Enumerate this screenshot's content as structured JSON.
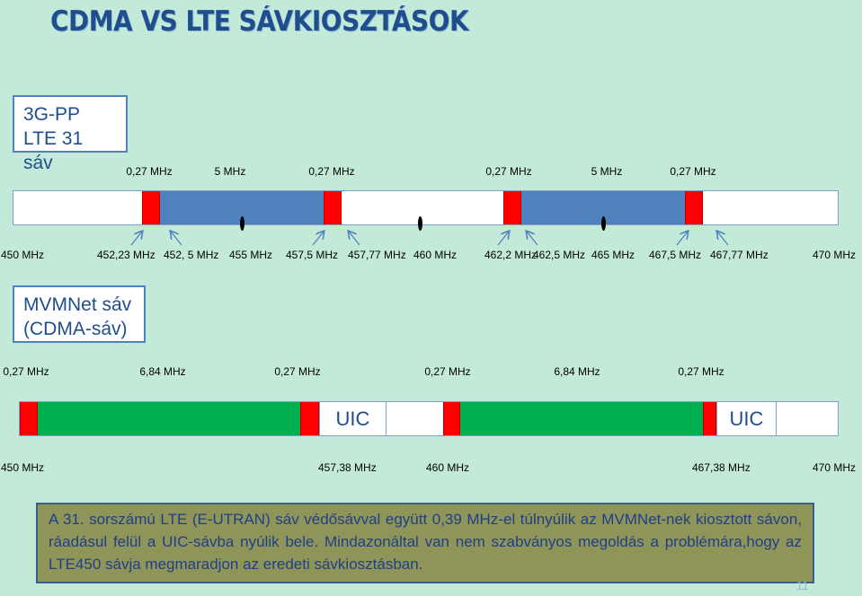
{
  "title": "CDMA VS LTE SÁVKIOSZTÁSOK",
  "lte_box": {
    "line1": "3G-PP",
    "line2": "LTE 31 sáv"
  },
  "lte_widths": [
    "0,27 MHz",
    "5 MHz",
    "0,27 MHz",
    "0,27 MHz",
    "5 MHz",
    "0,27 MHz"
  ],
  "lte_freqs": [
    "450 MHz",
    "452,23 MHz",
    "452, 5 MHz",
    "455 MHz",
    "457,5 MHz",
    "457,77 MHz",
    "460 MHz",
    "462,2 MHz",
    "462,5 MHz",
    "465 MHz",
    "467,5 MHz",
    "467,77 MHz",
    "470 MHz"
  ],
  "cdma_box": {
    "line1": "MVMNet sáv",
    "line2": "(CDMA-sáv)"
  },
  "cdma_widths": [
    "0,27 MHz",
    "6,84 MHz",
    "0,27 MHz",
    "0,27 MHz",
    "6,84 MHz",
    "0,27 MHz"
  ],
  "uic_labels": [
    "UIC",
    "UIC"
  ],
  "cdma_freqs": [
    "450 MHz",
    "457,38 MHz",
    "460 MHz",
    "467,38 MHz",
    "470 MHz"
  ],
  "note": "A 31. sorszámú LTE (E-UTRAN)  sáv védősávval együtt 0,39 MHz-el túlnyúlik az MVMNet-nek kiosztott sávon, ráadásul felül a UIC-sávba nyúlik bele. Mindazonáltal van nem szabványos megoldás a problémára,hogy az LTE450 sávja megmaradjon az eredeti sávkiosztásban.",
  "page_number": "11",
  "colors": {
    "guard": "#ff0000",
    "lte_band": "#4f81bd",
    "cdma_band": "#00b050",
    "arrow": "#4f81bd"
  }
}
